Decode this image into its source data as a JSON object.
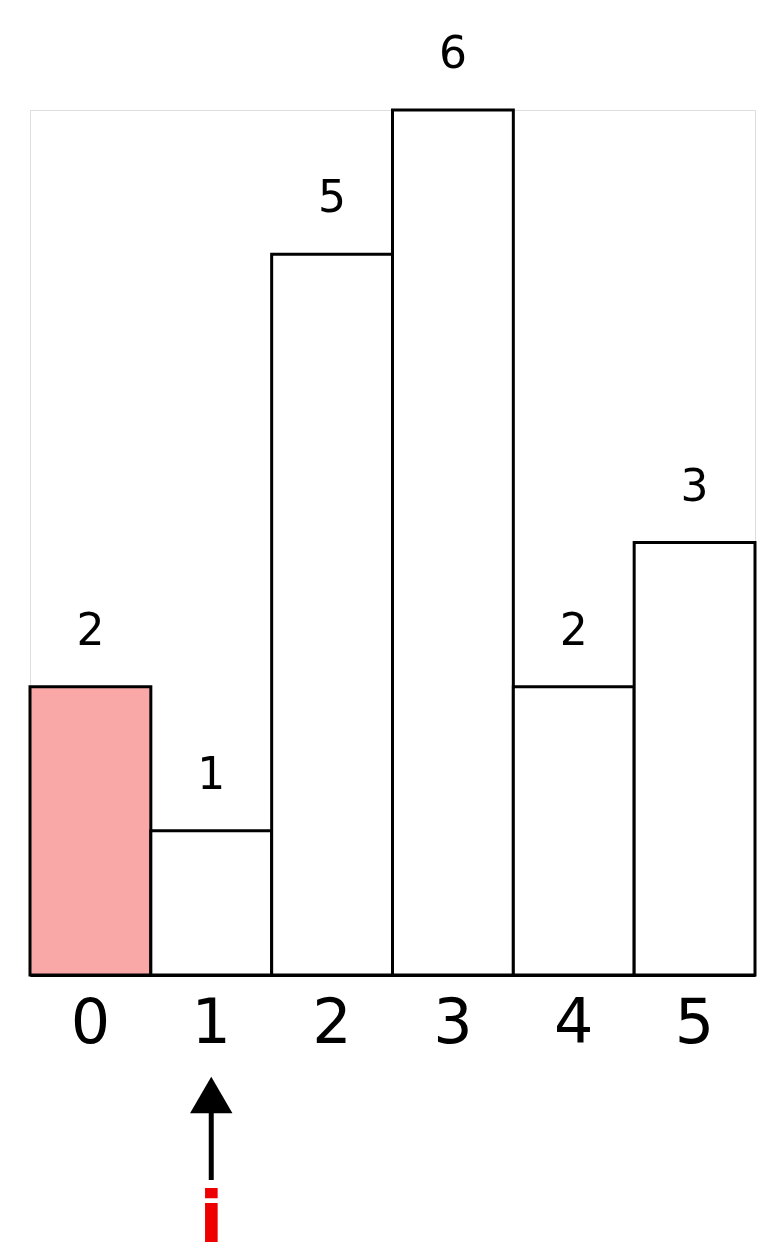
{
  "chart_data": {
    "type": "bar",
    "categories": [
      "0",
      "1",
      "2",
      "3",
      "4",
      "5"
    ],
    "values": [
      2,
      1,
      5,
      6,
      2,
      3
    ],
    "colors": [
      "#faa7a7",
      "#ffffff",
      "#ffffff",
      "#ffffff",
      "#ffffff",
      "#ffffff"
    ],
    "data_labels": true,
    "annotations": [
      {
        "text": "i",
        "x": "1"
      }
    ]
  }
}
